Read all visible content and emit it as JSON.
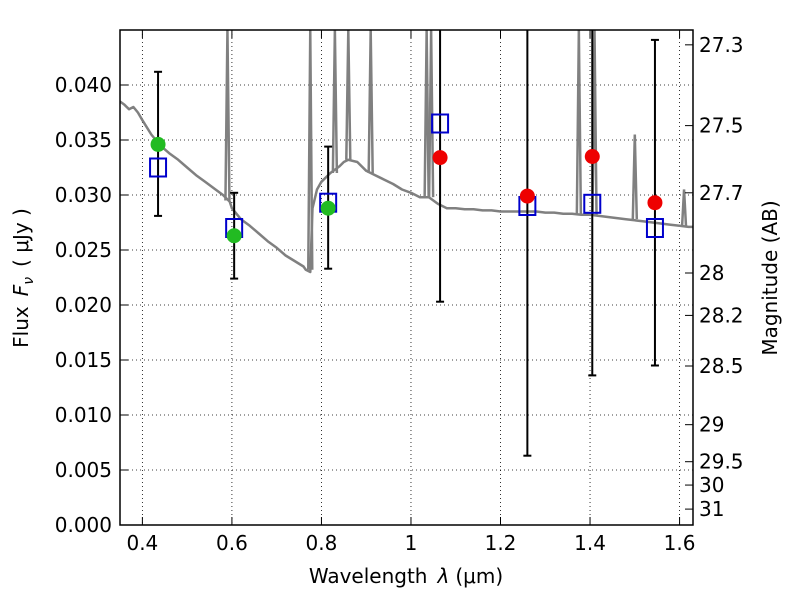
{
  "chart_data": {
    "type": "scatter",
    "xlabel_prefix": "Wavelength",
    "xlabel_symbol": "λ",
    "xlabel_unit": "(μm)",
    "ylabel_prefix": "Flux",
    "ylabel_symbol": "F",
    "ylabel_subscript": "ν",
    "ylabel_unit": "( μJy )",
    "y2label": "Magnitude (AB)",
    "xlim": [
      0.35,
      1.63
    ],
    "ylim": [
      0.0,
      0.045
    ],
    "grid": true,
    "x_ticks": [
      {
        "value": 0.4,
        "label": "0.4"
      },
      {
        "value": 0.6,
        "label": "0.6"
      },
      {
        "value": 0.8,
        "label": "0.8"
      },
      {
        "value": 1.0,
        "label": "1"
      },
      {
        "value": 1.2,
        "label": "1.2"
      },
      {
        "value": 1.4,
        "label": "1.4"
      },
      {
        "value": 1.6,
        "label": "1.6"
      }
    ],
    "y_ticks": [
      {
        "value": 0.0,
        "label": "0.000"
      },
      {
        "value": 0.005,
        "label": "0.005"
      },
      {
        "value": 0.01,
        "label": "0.010"
      },
      {
        "value": 0.015,
        "label": "0.015"
      },
      {
        "value": 0.02,
        "label": "0.020"
      },
      {
        "value": 0.025,
        "label": "0.025"
      },
      {
        "value": 0.03,
        "label": "0.030"
      },
      {
        "value": 0.035,
        "label": "0.035"
      },
      {
        "value": 0.04,
        "label": "0.040"
      }
    ],
    "y2_ticks": [
      {
        "value": 27.3,
        "label": "27.3"
      },
      {
        "value": 27.5,
        "label": "27.5"
      },
      {
        "value": 27.7,
        "label": "27.7"
      },
      {
        "value": 28.0,
        "label": "28"
      },
      {
        "value": 28.2,
        "label": "28.2"
      },
      {
        "value": 28.5,
        "label": "28.5"
      },
      {
        "value": 29.0,
        "label": "29"
      },
      {
        "value": 29.5,
        "label": "29.5"
      },
      {
        "value": 30.0,
        "label": "30"
      },
      {
        "value": 31.0,
        "label": "31"
      }
    ],
    "series": [
      {
        "kind": "line",
        "color": "#808080",
        "x": [
          0.35,
          0.36,
          0.37,
          0.38,
          0.39,
          0.4,
          0.42,
          0.44,
          0.46,
          0.48,
          0.5,
          0.52,
          0.54,
          0.56,
          0.58,
          0.59,
          0.595,
          0.6,
          0.62,
          0.64,
          0.66,
          0.68,
          0.7,
          0.72,
          0.74,
          0.76,
          0.765,
          0.775,
          0.78,
          0.79,
          0.8,
          0.82,
          0.84,
          0.85,
          0.86,
          0.88,
          0.9,
          0.92,
          0.94,
          0.96,
          0.98,
          1.0,
          1.02,
          1.04,
          1.06,
          1.08,
          1.1,
          1.12,
          1.14,
          1.16,
          1.18,
          1.2,
          1.22,
          1.24,
          1.26,
          1.28,
          1.3,
          1.32,
          1.34,
          1.36,
          1.38,
          1.4,
          1.42,
          1.44,
          1.46,
          1.48,
          1.5,
          1.52,
          1.54,
          1.56,
          1.58,
          1.6,
          1.62,
          1.63
        ],
        "y": [
          0.0385,
          0.0382,
          0.0378,
          0.038,
          0.0375,
          0.0368,
          0.0355,
          0.0345,
          0.0338,
          0.0332,
          0.0325,
          0.0318,
          0.0312,
          0.0306,
          0.03,
          0.0296,
          0.0294,
          0.0288,
          0.0278,
          0.0272,
          0.0265,
          0.0258,
          0.0252,
          0.0245,
          0.024,
          0.0235,
          0.0232,
          0.023,
          0.0288,
          0.0305,
          0.0312,
          0.032,
          0.0326,
          0.033,
          0.0332,
          0.033,
          0.0322,
          0.0318,
          0.0314,
          0.031,
          0.0305,
          0.0302,
          0.0298,
          0.0298,
          0.0292,
          0.0288,
          0.0288,
          0.0287,
          0.0287,
          0.0286,
          0.0286,
          0.0285,
          0.0285,
          0.0285,
          0.0285,
          0.0285,
          0.0284,
          0.0284,
          0.0283,
          0.0283,
          0.0282,
          0.0282,
          0.0281,
          0.028,
          0.0279,
          0.0278,
          0.0277,
          0.0276,
          0.0275,
          0.0274,
          0.0273,
          0.0272,
          0.0271,
          0.0271
        ]
      },
      {
        "kind": "line-spikes",
        "color": "#808080",
        "spikes": [
          {
            "x": 0.59,
            "ymin": 0.0295,
            "ymax": 0.045
          },
          {
            "x": 0.775,
            "ymin": 0.0232,
            "ymax": 0.045
          },
          {
            "x": 0.83,
            "ymin": 0.032,
            "ymax": 0.045
          },
          {
            "x": 0.86,
            "ymin": 0.0332,
            "ymax": 0.045
          },
          {
            "x": 0.91,
            "ymin": 0.032,
            "ymax": 0.045
          },
          {
            "x": 1.035,
            "ymin": 0.0298,
            "ymax": 0.045
          },
          {
            "x": 1.045,
            "ymin": 0.0298,
            "ymax": 0.045
          },
          {
            "x": 1.375,
            "ymin": 0.0283,
            "ymax": 0.045
          },
          {
            "x": 1.41,
            "ymin": 0.0282,
            "ymax": 0.045
          },
          {
            "x": 1.5,
            "ymin": 0.0278,
            "ymax": 0.0355
          },
          {
            "x": 1.61,
            "ymin": 0.0271,
            "ymax": 0.0305
          }
        ]
      },
      {
        "kind": "errorbar",
        "color": "#000000",
        "points": [
          {
            "x": 0.435,
            "ylo": 0.0281,
            "yhi": 0.0412
          },
          {
            "x": 0.605,
            "ylo": 0.0224,
            "yhi": 0.0302
          },
          {
            "x": 0.815,
            "ylo": 0.0233,
            "yhi": 0.0344
          },
          {
            "x": 1.065,
            "ylo": 0.0203,
            "yhi": 0.0453
          },
          {
            "x": 1.26,
            "ylo": 0.0063,
            "yhi": 0.0453
          },
          {
            "x": 1.405,
            "ylo": 0.0136,
            "yhi": 0.0453
          },
          {
            "x": 1.545,
            "ylo": 0.0145,
            "yhi": 0.0441
          }
        ]
      },
      {
        "kind": "markers-square",
        "color": "#0000cc",
        "x": [
          0.435,
          0.605,
          0.815,
          1.065,
          1.26,
          1.405,
          1.545
        ],
        "y": [
          0.0325,
          0.027,
          0.0293,
          0.0365,
          0.029,
          0.0292,
          0.027
        ]
      },
      {
        "kind": "markers-circle",
        "color": "#22bb22",
        "x": [
          0.435,
          0.605,
          0.815
        ],
        "y": [
          0.0346,
          0.0263,
          0.0288
        ]
      },
      {
        "kind": "markers-circle",
        "color": "#ee0000",
        "x": [
          1.065,
          1.26,
          1.405,
          1.545
        ],
        "y": [
          0.0334,
          0.0299,
          0.0335,
          0.0293
        ]
      }
    ]
  }
}
